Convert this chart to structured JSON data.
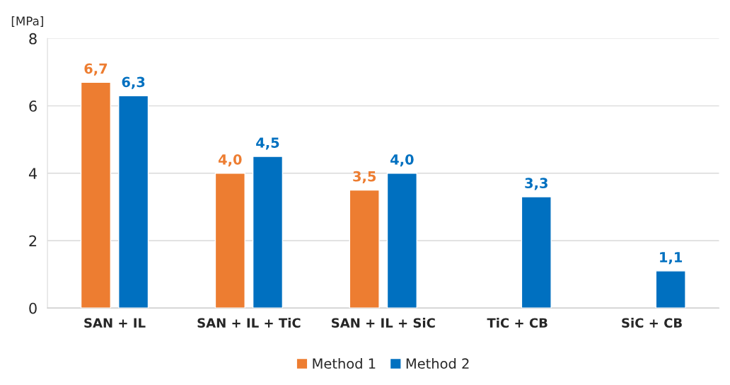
{
  "chart_data": {
    "type": "bar",
    "ylabel": "[MPa]",
    "categories": [
      "SAN + IL",
      "SAN + IL + TiC",
      "SAN + IL + SiC",
      "TiC + CB",
      "SiC + CB"
    ],
    "series": [
      {
        "name": "Method 1",
        "color": "#ed7d31",
        "values": [
          6.7,
          4.0,
          3.5,
          null,
          null
        ],
        "value_labels": [
          "6,7",
          "4,0",
          "3,5",
          null,
          null
        ]
      },
      {
        "name": "Method 2",
        "color": "#0070c0",
        "values": [
          6.3,
          4.5,
          4.0,
          3.3,
          1.1
        ],
        "value_labels": [
          "6,3",
          "4,5",
          "4,0",
          "3,3",
          "1,1"
        ]
      }
    ],
    "ylim": [
      0,
      8
    ],
    "yticks": [
      0,
      2,
      4,
      6,
      8
    ],
    "grid": "y",
    "legend": "bottom"
  }
}
